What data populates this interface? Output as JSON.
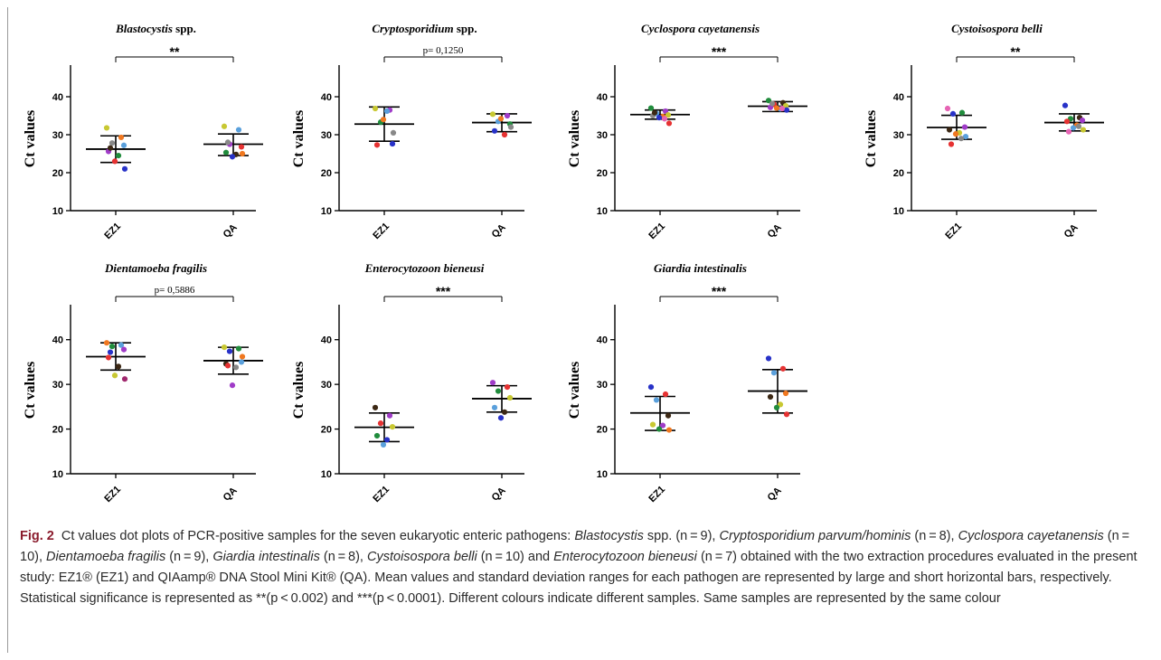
{
  "figure": {
    "label": "Fig. 2",
    "caption_runs": [
      {
        "text": "Ct values dot plots of PCR-positive samples for the seven eukaryotic enteric pathogens: ",
        "italic": false
      },
      {
        "text": "Blastocystis",
        "italic": true
      },
      {
        "text": " spp. (n = 9), ",
        "italic": false
      },
      {
        "text": "Cryptosporidium parvum/hominis",
        "italic": true
      },
      {
        "text": " (n = 8), ",
        "italic": false
      },
      {
        "text": "Cyclospora cayetanensis",
        "italic": true
      },
      {
        "text": " (n = 10), ",
        "italic": false
      },
      {
        "text": "Dientamoeba fragilis",
        "italic": true
      },
      {
        "text": " (n = 9), ",
        "italic": false
      },
      {
        "text": "Giardia intestinalis",
        "italic": true
      },
      {
        "text": " (n = 8), ",
        "italic": false
      },
      {
        "text": "Cystoisospora belli",
        "italic": true
      },
      {
        "text": " (n = 10) and ",
        "italic": false
      },
      {
        "text": "Enterocytozoon bieneusi",
        "italic": true
      },
      {
        "text": " (n = 7) obtained with the two extraction procedures evaluated in the present study: EZ1® (EZ1) and QIAamp® DNA Stool Mini Kit® (QA). Mean values and standard deviation ranges for each pathogen are represented by large and short horizontal bars, respectively. Statistical significance is represented as **(p < 0.002) and ***(p < 0.0001). Different colours indicate different samples. Same samples are represented by the same colour",
        "italic": false
      }
    ]
  },
  "chart_data": [
    {
      "type": "scatter",
      "title": "Blastocystis spp.",
      "title_parts": [
        {
          "text": "Blastocystis",
          "italic": true
        },
        {
          "text": " spp.",
          "italic": false
        }
      ],
      "ylabel": "Ct values",
      "ylim": [
        10,
        45
      ],
      "yticks": [
        "10",
        "20",
        "30",
        "40"
      ],
      "categories": [
        "EZ1",
        "QA"
      ],
      "significance": "**",
      "groups": [
        {
          "name": "EZ1",
          "mean": 26.2,
          "sd_low": 22.7,
          "sd_high": 29.7,
          "points": [
            {
              "y": 31.8,
              "color": "#c8c832"
            },
            {
              "y": 29.3,
              "color": "#f07820"
            },
            {
              "y": 27.8,
              "color": "#888888"
            },
            {
              "y": 27.2,
              "color": "#5aa0dc"
            },
            {
              "y": 25.6,
              "color": "#a03cc8"
            },
            {
              "y": 24.5,
              "color": "#208c3c"
            },
            {
              "y": 23.0,
              "color": "#e63232"
            },
            {
              "y": 21.0,
              "color": "#2832c8"
            },
            {
              "y": 26.5,
              "color": "#3c2814"
            }
          ]
        },
        {
          "name": "QA",
          "mean": 27.5,
          "sd_low": 24.5,
          "sd_high": 30.2,
          "points": [
            {
              "y": 32.2,
              "color": "#c8c832"
            },
            {
              "y": 31.3,
              "color": "#5aa0dc"
            },
            {
              "y": 27.5,
              "color": "#a03cc8"
            },
            {
              "y": 26.8,
              "color": "#e63232"
            },
            {
              "y": 25.3,
              "color": "#208c3c"
            },
            {
              "y": 24.8,
              "color": "#3c2814"
            },
            {
              "y": 24.2,
              "color": "#2832c8"
            },
            {
              "y": 25.0,
              "color": "#f07820"
            },
            {
              "y": 28.0,
              "color": "#888888"
            }
          ]
        }
      ]
    },
    {
      "type": "scatter",
      "title": "Cryptosporidium spp.",
      "title_parts": [
        {
          "text": "Cryptosporidium",
          "italic": true
        },
        {
          "text": " spp.",
          "italic": false
        }
      ],
      "ylabel": "Ct values",
      "ylim": [
        10,
        45
      ],
      "yticks": [
        "10",
        "20",
        "30",
        "40"
      ],
      "categories": [
        "EZ1",
        "QA"
      ],
      "significance": "p= 0,1250",
      "groups": [
        {
          "name": "EZ1",
          "mean": 32.8,
          "sd_low": 28.3,
          "sd_high": 37.3,
          "points": [
            {
              "y": 36.9,
              "color": "#c8c832"
            },
            {
              "y": 36.5,
              "color": "#a03cc8"
            },
            {
              "y": 33.3,
              "color": "#208c3c"
            },
            {
              "y": 27.6,
              "color": "#2832c8"
            },
            {
              "y": 27.3,
              "color": "#e63232"
            },
            {
              "y": 36.2,
              "color": "#5aa0dc"
            },
            {
              "y": 34.0,
              "color": "#f07820"
            },
            {
              "y": 30.5,
              "color": "#888888"
            }
          ]
        },
        {
          "name": "QA",
          "mean": 33.2,
          "sd_low": 30.8,
          "sd_high": 35.5,
          "points": [
            {
              "y": 35.4,
              "color": "#c8c832"
            },
            {
              "y": 35.0,
              "color": "#a03cc8"
            },
            {
              "y": 33.5,
              "color": "#5aa0dc"
            },
            {
              "y": 32.8,
              "color": "#208c3c"
            },
            {
              "y": 31.0,
              "color": "#2832c8"
            },
            {
              "y": 30.0,
              "color": "#e63232"
            },
            {
              "y": 34.2,
              "color": "#f07820"
            },
            {
              "y": 32.0,
              "color": "#888888"
            }
          ]
        }
      ]
    },
    {
      "type": "scatter",
      "title": "Cyclospora cayetanensis",
      "title_parts": [
        {
          "text": "Cyclospora cayetanensis",
          "italic": true
        }
      ],
      "ylabel": "Ct values",
      "ylim": [
        10,
        45
      ],
      "yticks": [
        "10",
        "20",
        "30",
        "40"
      ],
      "categories": [
        "EZ1",
        "QA"
      ],
      "significance": "***",
      "groups": [
        {
          "name": "EZ1",
          "mean": 35.3,
          "sd_low": 34.1,
          "sd_high": 36.5,
          "points": [
            {
              "y": 37.0,
              "color": "#208c3c"
            },
            {
              "y": 36.2,
              "color": "#a03cc8"
            },
            {
              "y": 35.6,
              "color": "#5aa0dc"
            },
            {
              "y": 35.2,
              "color": "#c8c832"
            },
            {
              "y": 35.0,
              "color": "#888888"
            },
            {
              "y": 34.8,
              "color": "#f07820"
            },
            {
              "y": 34.5,
              "color": "#2832c8"
            },
            {
              "y": 33.0,
              "color": "#e63232"
            },
            {
              "y": 35.8,
              "color": "#3c2814"
            },
            {
              "y": 34.2,
              "color": "#e664b4"
            }
          ]
        },
        {
          "name": "QA",
          "mean": 37.5,
          "sd_low": 36.1,
          "sd_high": 38.7,
          "points": [
            {
              "y": 39.0,
              "color": "#208c3c"
            },
            {
              "y": 38.4,
              "color": "#3c2814"
            },
            {
              "y": 38.0,
              "color": "#e63232"
            },
            {
              "y": 37.6,
              "color": "#c8c832"
            },
            {
              "y": 37.2,
              "color": "#a03cc8"
            },
            {
              "y": 36.8,
              "color": "#5aa0dc"
            },
            {
              "y": 37.0,
              "color": "#f07820"
            },
            {
              "y": 36.5,
              "color": "#2832c8"
            },
            {
              "y": 38.2,
              "color": "#888888"
            },
            {
              "y": 36.9,
              "color": "#e664b4"
            }
          ]
        }
      ]
    },
    {
      "type": "scatter",
      "title": "Cystoisospora belli",
      "title_parts": [
        {
          "text": "Cystoisospora belli",
          "italic": true
        }
      ],
      "ylabel": "Ct values",
      "ylim": [
        10,
        45
      ],
      "yticks": [
        "10",
        "20",
        "30",
        "40"
      ],
      "categories": [
        "EZ1",
        "QA"
      ],
      "significance": "**",
      "groups": [
        {
          "name": "EZ1",
          "mean": 31.9,
          "sd_low": 28.8,
          "sd_high": 35.1,
          "points": [
            {
              "y": 36.9,
              "color": "#e664b4"
            },
            {
              "y": 35.8,
              "color": "#208c3c"
            },
            {
              "y": 35.5,
              "color": "#2832c8"
            },
            {
              "y": 32.0,
              "color": "#a03cc8"
            },
            {
              "y": 31.3,
              "color": "#3c2814"
            },
            {
              "y": 30.5,
              "color": "#c8c832"
            },
            {
              "y": 30.2,
              "color": "#f07820"
            },
            {
              "y": 29.5,
              "color": "#5aa0dc"
            },
            {
              "y": 27.5,
              "color": "#e63232"
            },
            {
              "y": 29.0,
              "color": "#888888"
            }
          ]
        },
        {
          "name": "QA",
          "mean": 33.2,
          "sd_low": 31.0,
          "sd_high": 35.5,
          "points": [
            {
              "y": 37.7,
              "color": "#2832c8"
            },
            {
              "y": 34.5,
              "color": "#3c2814"
            },
            {
              "y": 34.2,
              "color": "#208c3c"
            },
            {
              "y": 33.8,
              "color": "#a03cc8"
            },
            {
              "y": 33.5,
              "color": "#e63232"
            },
            {
              "y": 32.5,
              "color": "#f07820"
            },
            {
              "y": 31.8,
              "color": "#5aa0dc"
            },
            {
              "y": 31.3,
              "color": "#c8c832"
            },
            {
              "y": 30.8,
              "color": "#e664b4"
            },
            {
              "y": 32.2,
              "color": "#888888"
            }
          ]
        }
      ]
    },
    {
      "type": "scatter",
      "title": "Dientamoeba fragilis",
      "title_parts": [
        {
          "text": "Dientamoeba fragilis",
          "italic": true
        }
      ],
      "ylabel": "Ct values",
      "ylim": [
        10,
        45
      ],
      "yticks": [
        "10",
        "20",
        "30",
        "40"
      ],
      "categories": [
        "EZ1",
        "QA"
      ],
      "significance": "p= 0,5886",
      "groups": [
        {
          "name": "EZ1",
          "mean": 36.2,
          "sd_low": 33.2,
          "sd_high": 39.3,
          "points": [
            {
              "y": 39.3,
              "color": "#f07820"
            },
            {
              "y": 38.8,
              "color": "#5aa0dc"
            },
            {
              "y": 38.5,
              "color": "#208c3c"
            },
            {
              "y": 37.8,
              "color": "#a03cc8"
            },
            {
              "y": 36.0,
              "color": "#e63232"
            },
            {
              "y": 34.0,
              "color": "#3c2814"
            },
            {
              "y": 32.0,
              "color": "#c8c832"
            },
            {
              "y": 31.2,
              "color": "#a0286e"
            },
            {
              "y": 37.2,
              "color": "#2832c8"
            }
          ]
        },
        {
          "name": "QA",
          "mean": 35.3,
          "sd_low": 32.3,
          "sd_high": 38.3,
          "points": [
            {
              "y": 38.3,
              "color": "#c8c832"
            },
            {
              "y": 38.0,
              "color": "#208c3c"
            },
            {
              "y": 37.4,
              "color": "#2832c8"
            },
            {
              "y": 35.0,
              "color": "#5aa0dc"
            },
            {
              "y": 34.6,
              "color": "#3c2814"
            },
            {
              "y": 33.8,
              "color": "#888888"
            },
            {
              "y": 29.8,
              "color": "#a03cc8"
            },
            {
              "y": 36.2,
              "color": "#f07820"
            },
            {
              "y": 34.2,
              "color": "#e63232"
            }
          ]
        }
      ]
    },
    {
      "type": "scatter",
      "title": "Enterocytozoon bieneusi",
      "title_parts": [
        {
          "text": "Enterocytozoon bieneusi",
          "italic": true
        }
      ],
      "ylabel": "Ct values",
      "ylim": [
        10,
        45
      ],
      "yticks": [
        "10",
        "20",
        "30",
        "40"
      ],
      "categories": [
        "EZ1",
        "QA"
      ],
      "significance": "***",
      "groups": [
        {
          "name": "EZ1",
          "mean": 20.4,
          "sd_low": 17.2,
          "sd_high": 23.6,
          "points": [
            {
              "y": 24.8,
              "color": "#3c2814"
            },
            {
              "y": 23.0,
              "color": "#a03cc8"
            },
            {
              "y": 21.3,
              "color": "#e63232"
            },
            {
              "y": 20.5,
              "color": "#c8c832"
            },
            {
              "y": 18.5,
              "color": "#208c3c"
            },
            {
              "y": 17.6,
              "color": "#2832c8"
            },
            {
              "y": 16.5,
              "color": "#5aa0dc"
            }
          ]
        },
        {
          "name": "QA",
          "mean": 26.8,
          "sd_low": 23.8,
          "sd_high": 29.7,
          "points": [
            {
              "y": 30.4,
              "color": "#a03cc8"
            },
            {
              "y": 29.4,
              "color": "#e63232"
            },
            {
              "y": 28.5,
              "color": "#208c3c"
            },
            {
              "y": 27.0,
              "color": "#c8c832"
            },
            {
              "y": 24.8,
              "color": "#5aa0dc"
            },
            {
              "y": 23.8,
              "color": "#3c2814"
            },
            {
              "y": 22.5,
              "color": "#2832c8"
            }
          ]
        }
      ]
    },
    {
      "type": "scatter",
      "title": "Giardia intestinalis",
      "title_parts": [
        {
          "text": "Giardia intestinalis",
          "italic": true
        }
      ],
      "ylabel": "Ct values",
      "ylim": [
        10,
        45
      ],
      "yticks": [
        "10",
        "20",
        "30",
        "40"
      ],
      "categories": [
        "EZ1",
        "QA"
      ],
      "significance": "***",
      "groups": [
        {
          "name": "EZ1",
          "mean": 23.6,
          "sd_low": 19.7,
          "sd_high": 27.3,
          "points": [
            {
              "y": 29.4,
              "color": "#2832c8"
            },
            {
              "y": 27.8,
              "color": "#e63232"
            },
            {
              "y": 26.5,
              "color": "#5aa0dc"
            },
            {
              "y": 23.0,
              "color": "#3c2814"
            },
            {
              "y": 21.0,
              "color": "#c8c832"
            },
            {
              "y": 20.8,
              "color": "#a03cc8"
            },
            {
              "y": 20.0,
              "color": "#208c3c"
            },
            {
              "y": 19.8,
              "color": "#f07820"
            }
          ]
        },
        {
          "name": "QA",
          "mean": 28.5,
          "sd_low": 23.6,
          "sd_high": 33.3,
          "points": [
            {
              "y": 35.8,
              "color": "#2832c8"
            },
            {
              "y": 33.5,
              "color": "#e63232"
            },
            {
              "y": 32.6,
              "color": "#5aa0dc"
            },
            {
              "y": 28.0,
              "color": "#f07820"
            },
            {
              "y": 27.2,
              "color": "#3c2814"
            },
            {
              "y": 25.5,
              "color": "#c8c832"
            },
            {
              "y": 24.8,
              "color": "#208c3c"
            },
            {
              "y": 23.3,
              "color": "#e63232"
            }
          ]
        }
      ]
    }
  ]
}
